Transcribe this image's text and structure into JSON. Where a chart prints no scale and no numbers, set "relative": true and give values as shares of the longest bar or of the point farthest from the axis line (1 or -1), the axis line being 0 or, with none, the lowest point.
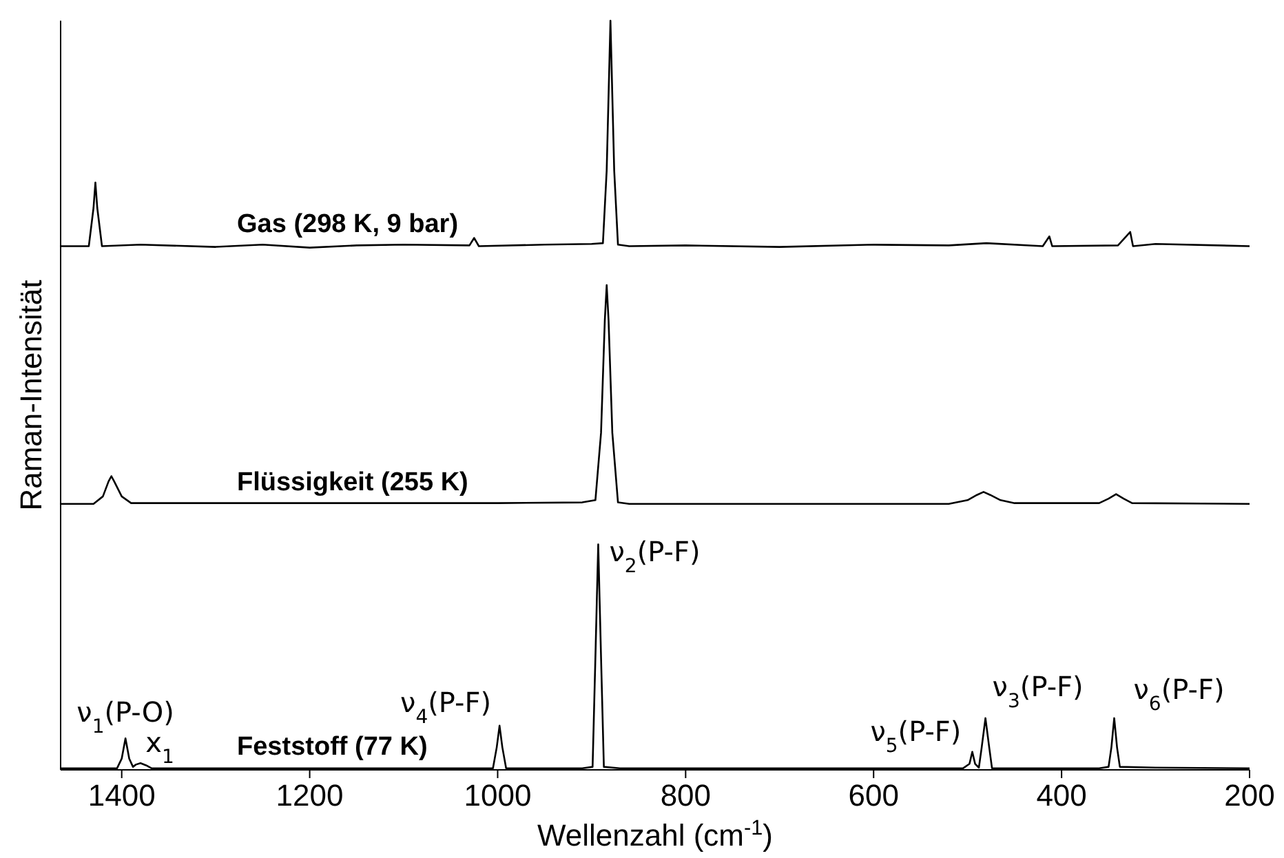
{
  "chart_data": {
    "type": "line",
    "relative": true,
    "xlabel": "Wellenzahl (cm$^{-1}$)",
    "ylabel": "Raman-Intensität",
    "xlim": [
      1465,
      200
    ],
    "xticks": [
      1400,
      1200,
      1000,
      800,
      600,
      400,
      200
    ],
    "series": [
      {
        "name": "Gas (298 K, 9 bar)",
        "color": "#000000",
        "x": [
          1465,
          1435,
          1430,
          1428,
          1426,
          1421,
          1380,
          1300,
          1250,
          1200,
          1150,
          1100,
          1030,
          1025,
          1020,
          950,
          900,
          888,
          884,
          880,
          876,
          872,
          860,
          800,
          700,
          600,
          520,
          480,
          420,
          413,
          410,
          340,
          327,
          324,
          300,
          200
        ],
        "values": [
          0.699,
          0.699,
          0.75,
          0.784,
          0.75,
          0.699,
          0.701,
          0.698,
          0.701,
          0.697,
          0.7,
          0.701,
          0.7,
          0.71,
          0.699,
          0.701,
          0.702,
          0.703,
          0.8,
          1.0,
          0.8,
          0.701,
          0.699,
          0.7,
          0.698,
          0.701,
          0.7,
          0.703,
          0.699,
          0.712,
          0.699,
          0.7,
          0.718,
          0.699,
          0.702,
          0.699
        ]
      },
      {
        "name": "Flüssigkeit (255 K)",
        "color": "#000000",
        "x": [
          1465,
          1430,
          1420,
          1414,
          1411,
          1408,
          1400,
          1390,
          1200,
          1000,
          910,
          896,
          890,
          886,
          884,
          882,
          878,
          872,
          860,
          700,
          520,
          500,
          490,
          483,
          476,
          465,
          450,
          360,
          350,
          342,
          334,
          325,
          200
        ],
        "values": [
          0.355,
          0.355,
          0.365,
          0.385,
          0.392,
          0.385,
          0.365,
          0.356,
          0.356,
          0.356,
          0.357,
          0.36,
          0.45,
          0.6,
          0.647,
          0.6,
          0.45,
          0.357,
          0.355,
          0.355,
          0.355,
          0.36,
          0.367,
          0.371,
          0.367,
          0.36,
          0.356,
          0.356,
          0.362,
          0.368,
          0.362,
          0.356,
          0.355
        ]
      },
      {
        "name": "Feststoff (77 K)",
        "color": "#000000",
        "x": [
          1465,
          1405,
          1400,
          1396,
          1392,
          1388,
          1385,
          1380,
          1374,
          1368,
          1200,
          1005,
          1001,
          998,
          995,
          991,
          910,
          899,
          896,
          893,
          890,
          887,
          870,
          700,
          505,
          498,
          495,
          492,
          488,
          485,
          481,
          477,
          474,
          360,
          350,
          347,
          344,
          341,
          338,
          300,
          200
        ],
        "values": [
          0.002,
          0.002,
          0.015,
          0.042,
          0.015,
          0.004,
          0.007,
          0.009,
          0.006,
          0.002,
          0.002,
          0.002,
          0.03,
          0.059,
          0.03,
          0.002,
          0.002,
          0.004,
          0.15,
          0.301,
          0.15,
          0.004,
          0.002,
          0.002,
          0.002,
          0.008,
          0.024,
          0.008,
          0.003,
          0.03,
          0.069,
          0.03,
          0.002,
          0.002,
          0.004,
          0.03,
          0.069,
          0.03,
          0.004,
          0.003,
          0.002
        ]
      }
    ],
    "annotations": [
      {
        "text": "ν$_{1}$(P-O)",
        "x": 1396,
        "y": 0.042
      },
      {
        "text": "x$_{1}$",
        "x": 1380,
        "y": 0.009
      },
      {
        "text": "ν$_{4}$(P-F)",
        "x": 998,
        "y": 0.059
      },
      {
        "text": "ν$_{2}$(P-F)",
        "x": 893,
        "y": 0.301
      },
      {
        "text": "ν$_{5}$(P-F)",
        "x": 495,
        "y": 0.024
      },
      {
        "text": "ν$_{3}$(P-F)",
        "x": 481,
        "y": 0.069
      },
      {
        "text": "ν$_{6}$(P-F)",
        "x": 344,
        "y": 0.069
      }
    ]
  }
}
